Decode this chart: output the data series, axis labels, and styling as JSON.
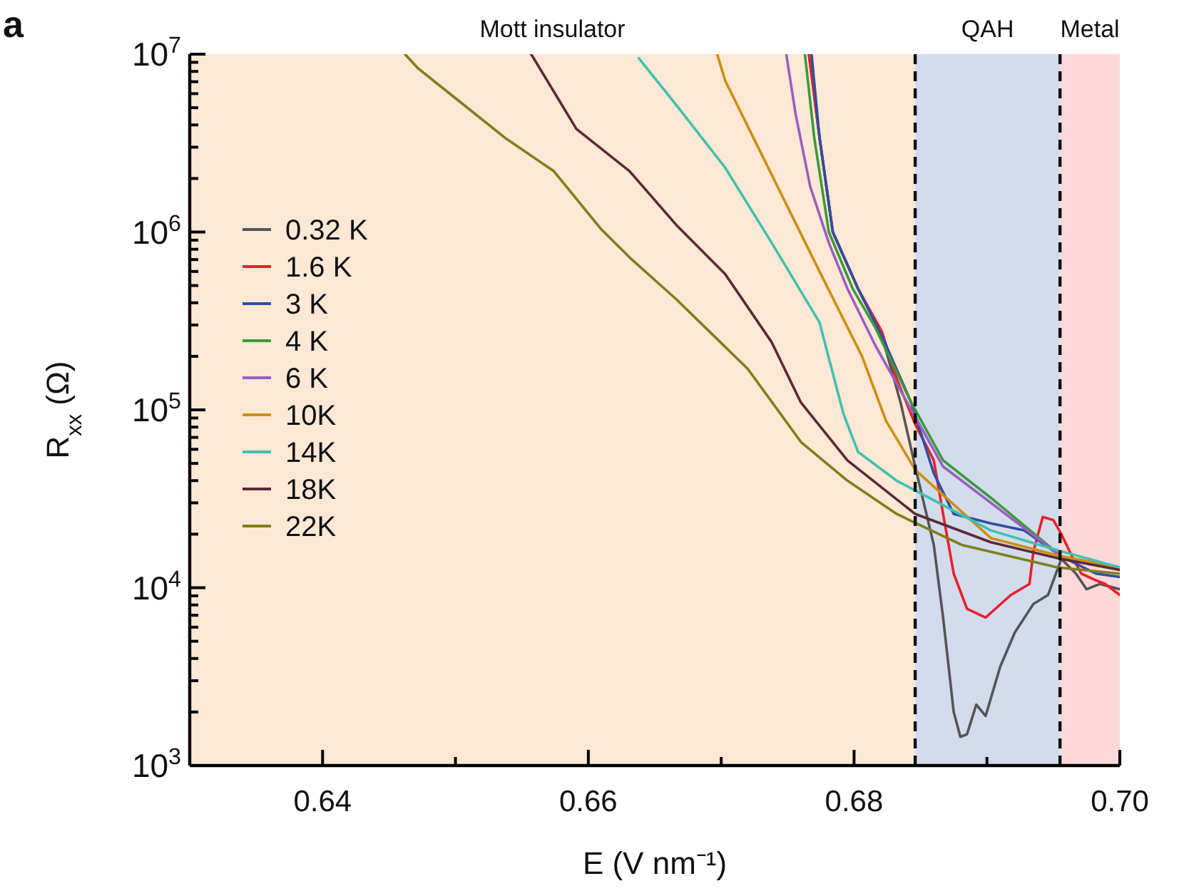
{
  "chart_data": {
    "type": "line",
    "xlabel": "E (V nm⁻¹)",
    "ylabel": "R$_{xx}$ (Ω)",
    "log": "y",
    "grid": false,
    "legend": "left",
    "line_style": "solid",
    "marker": "none",
    "xlim": [
      0.63,
      0.7
    ],
    "xticks": [
      0.64,
      {
        "value": 0.65,
        "label": null
      },
      0.66,
      {
        "value": 0.67,
        "label": null
      },
      0.68,
      {
        "value": 0.69,
        "label": null
      },
      {
        "value": 0.7,
        "label": "0.70"
      }
    ],
    "ylim": [
      1000,
      10000000
    ],
    "yticks": [
      {
        "value": 1000,
        "label": "10$^{3}$"
      },
      {
        "value": 2000,
        "label": null
      },
      {
        "value": 3000,
        "label": null
      },
      {
        "value": 4000,
        "label": null
      },
      {
        "value": 5000,
        "label": null
      },
      {
        "value": 6000,
        "label": null
      },
      {
        "value": 7000,
        "label": null
      },
      {
        "value": 8000,
        "label": null
      },
      {
        "value": 9000,
        "label": null
      },
      {
        "value": 10000,
        "label": "10$^{4}$"
      },
      {
        "value": 20000,
        "label": null
      },
      {
        "value": 30000,
        "label": null
      },
      {
        "value": 40000,
        "label": null
      },
      {
        "value": 50000,
        "label": null
      },
      {
        "value": 60000,
        "label": null
      },
      {
        "value": 70000,
        "label": null
      },
      {
        "value": 80000,
        "label": null
      },
      {
        "value": 90000,
        "label": null
      },
      {
        "value": 100000,
        "label": "10$^{5}$"
      },
      {
        "value": 200000,
        "label": null
      },
      {
        "value": 300000,
        "label": null
      },
      {
        "value": 400000,
        "label": null
      },
      {
        "value": 500000,
        "label": null
      },
      {
        "value": 600000,
        "label": null
      },
      {
        "value": 700000,
        "label": null
      },
      {
        "value": 800000,
        "label": null
      },
      {
        "value": 900000,
        "label": null
      },
      {
        "value": 1000000,
        "label": "10$^{6}$"
      },
      {
        "value": 2000000,
        "label": null
      },
      {
        "value": 3000000,
        "label": null
      },
      {
        "value": 4000000,
        "label": null
      },
      {
        "value": 5000000,
        "label": null
      },
      {
        "value": 6000000,
        "label": null
      },
      {
        "value": 7000000,
        "label": null
      },
      {
        "value": 8000000,
        "label": null
      },
      {
        "value": 9000000,
        "label": null
      },
      {
        "value": 10000000,
        "label": "10$^{7}$"
      }
    ],
    "bands": [
      {
        "axis": "x",
        "from": 0.63,
        "to": 0.6846,
        "label": "Mott insulator",
        "color": "#fde8d5"
      },
      {
        "axis": "x",
        "from": 0.6846,
        "to": 0.6955,
        "label": "QAH",
        "color": "#d3dcec"
      },
      {
        "axis": "x",
        "from": 0.6955,
        "to": 0.7,
        "label": "Metal",
        "color": "#fdd8d8"
      }
    ],
    "ref_lines": [
      {
        "axis": "x",
        "value": 0.6846,
        "line_style": "dashed",
        "color": "#111111"
      },
      {
        "axis": "x",
        "value": 0.6955,
        "line_style": "dashed",
        "color": "#111111"
      }
    ],
    "annotations": [
      "a"
    ],
    "series": [
      {
        "name": "0.32 K",
        "color": "#555555",
        "x": [
          0.6766,
          0.6774,
          0.6784,
          0.6803,
          0.6821,
          0.6835,
          0.6846,
          0.686,
          0.6867,
          0.6875,
          0.688,
          0.6885,
          0.6892,
          0.6899,
          0.691,
          0.6921,
          0.6935,
          0.6946,
          0.6956,
          0.6967,
          0.6975,
          0.6985,
          0.7
        ],
        "values": [
          10000000,
          3400000,
          1000000,
          480000,
          260000,
          110000,
          48000,
          17400,
          6800,
          2000,
          1450,
          1500,
          2200,
          1900,
          3600,
          5600,
          8100,
          9100,
          14500,
          12000,
          9800,
          10500,
          9800
        ]
      },
      {
        "name": "1.6 K",
        "color": "#e8202a",
        "x": [
          0.6766,
          0.6774,
          0.6784,
          0.6803,
          0.6821,
          0.6832,
          0.6846,
          0.686,
          0.6867,
          0.6875,
          0.6885,
          0.6899,
          0.6918,
          0.6932,
          0.6935,
          0.6942,
          0.695,
          0.6956,
          0.6964,
          0.6971,
          0.6982,
          0.6989,
          0.7
        ],
        "values": [
          10000000,
          3400000,
          1000000,
          480000,
          275000,
          150000,
          83000,
          52000,
          26000,
          12000,
          7600,
          6800,
          9100,
          10500,
          16000,
          25000,
          24000,
          20000,
          15000,
          12000,
          11000,
          10500,
          9100
        ]
      },
      {
        "name": "3 K",
        "color": "#2e4fa3",
        "x": [
          0.6768,
          0.6774,
          0.6784,
          0.6803,
          0.6821,
          0.6843,
          0.686,
          0.6875,
          0.6903,
          0.6928,
          0.6956,
          0.6982,
          0.7
        ],
        "values": [
          10000000,
          3400000,
          1000000,
          480000,
          260000,
          110000,
          44000,
          26000,
          23000,
          21000,
          15000,
          12000,
          11500
        ]
      },
      {
        "name": "4 K",
        "color": "#3a9a3a",
        "x": [
          0.6763,
          0.677,
          0.6781,
          0.6799,
          0.6816,
          0.6843,
          0.6867,
          0.6903,
          0.6956,
          0.7
        ],
        "values": [
          10000000,
          3400000,
          1000000,
          480000,
          290000,
          110000,
          52000,
          32000,
          15000,
          13000
        ]
      },
      {
        "name": "6 K",
        "color": "#9a5fc0",
        "x": [
          0.6749,
          0.6756,
          0.6767,
          0.6781,
          0.6795,
          0.6816,
          0.684,
          0.6867,
          0.6903,
          0.6956,
          0.7
        ],
        "values": [
          10000000,
          4600000,
          1800000,
          870000,
          480000,
          230000,
          110000,
          48000,
          30000,
          15000,
          12600
        ]
      },
      {
        "name": "10K",
        "color": "#cc9010",
        "x": [
          0.6697,
          0.6703,
          0.6738,
          0.6774,
          0.6806,
          0.6824,
          0.6846,
          0.6903,
          0.6956,
          0.7
        ],
        "values": [
          10000000,
          7100000,
          2100000,
          600000,
          200000,
          87000,
          46000,
          19000,
          15000,
          13000
        ]
      },
      {
        "name": "14K",
        "color": "#40c0b0",
        "x": [
          0.6638,
          0.6666,
          0.6703,
          0.6738,
          0.6774,
          0.6792,
          0.6803,
          0.6832,
          0.6903,
          0.6956,
          0.7
        ],
        "values": [
          9500000,
          5200000,
          2300000,
          870000,
          310000,
          95000,
          58000,
          40000,
          21000,
          16000,
          13000
        ]
      },
      {
        "name": "18K",
        "color": "#5c2a35",
        "x": [
          0.6557,
          0.6591,
          0.6631,
          0.6666,
          0.6703,
          0.6738,
          0.676,
          0.6795,
          0.6846,
          0.6903,
          0.6956,
          0.7
        ],
        "values": [
          10000000,
          3800000,
          2200000,
          1100000,
          580000,
          240000,
          110000,
          52000,
          26000,
          18000,
          14500,
          12600
        ]
      },
      {
        "name": "22K",
        "color": "#7f7f1a",
        "x": [
          0.6462,
          0.6472,
          0.6502,
          0.6537,
          0.6574,
          0.6609,
          0.6631,
          0.6666,
          0.672,
          0.676,
          0.6795,
          0.6832,
          0.6881,
          0.6953,
          0.7
        ],
        "values": [
          10000000,
          8300000,
          5500000,
          3400000,
          2200000,
          1050000,
          720000,
          420000,
          170000,
          66000,
          40000,
          26000,
          17400,
          13000,
          12000
        ]
      }
    ]
  }
}
